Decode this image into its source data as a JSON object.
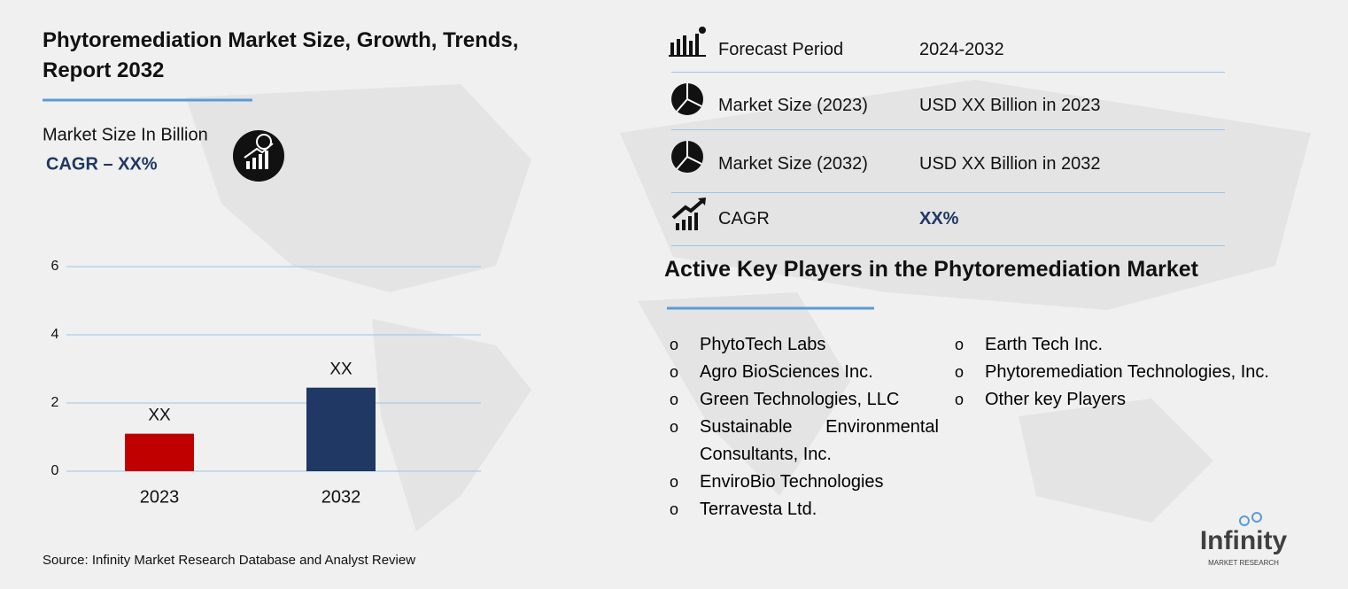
{
  "chart_data": {
    "type": "bar",
    "title": "Phytoremediation Market Size, Growth, Trends, Report 2032",
    "subtitle": "Market Size In Billion",
    "annotation": "CAGR – XX%",
    "categories": [
      "2023",
      "2032"
    ],
    "values": [
      1.1,
      2.45
    ],
    "value_labels": [
      "XX",
      "XX"
    ],
    "colors": [
      "#c00000",
      "#1f3864"
    ],
    "ylim": [
      0,
      6
    ],
    "yticks": [
      0,
      2,
      4,
      6
    ],
    "grid": true
  },
  "summary": [
    {
      "label": "Forecast Period",
      "value": "2024-2032"
    },
    {
      "label": "Market Size (2023)",
      "value": "USD XX Billion in 2023"
    },
    {
      "label": "Market Size (2032)",
      "value": "USD XX Billion in 2032"
    },
    {
      "label": "CAGR",
      "value": "XX%"
    }
  ],
  "players": {
    "title": "Active Key Players in the Phytoremediation Market",
    "left": [
      "PhytoTech Labs",
      "Agro BioSciences Inc.",
      "Green Technologies, LLC",
      "Sustainable Environmental Consultants, Inc.",
      "EnviroBio Technologies",
      "Terravesta Ltd."
    ],
    "right": [
      "Earth Tech Inc.",
      "Phytoremediation Technologies, Inc.",
      "Other key Players"
    ]
  },
  "source": "Source: Infinity Market Research Database and Analyst Review",
  "logo": {
    "name": "Infinity",
    "tagline": "MARKET RESEARCH"
  }
}
